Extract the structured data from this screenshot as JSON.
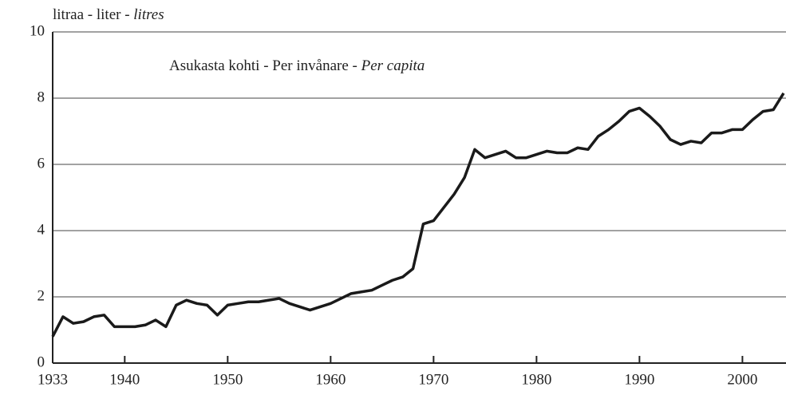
{
  "chart_data": {
    "type": "line",
    "ylabel": [
      "litraa - liter - ",
      "litres"
    ],
    "annotation": [
      "Asukasta kohti - Per invånare - ",
      "Per capita"
    ],
    "x": [
      1933,
      1934,
      1935,
      1936,
      1937,
      1938,
      1939,
      1940,
      1941,
      1942,
      1943,
      1944,
      1945,
      1946,
      1947,
      1948,
      1949,
      1950,
      1951,
      1952,
      1953,
      1954,
      1955,
      1956,
      1957,
      1958,
      1959,
      1960,
      1961,
      1962,
      1963,
      1964,
      1965,
      1966,
      1967,
      1968,
      1969,
      1970,
      1971,
      1972,
      1973,
      1974,
      1975,
      1976,
      1977,
      1978,
      1979,
      1980,
      1981,
      1982,
      1983,
      1984,
      1985,
      1986,
      1987,
      1988,
      1989,
      1990,
      1991,
      1992,
      1993,
      1994,
      1995,
      1996,
      1997,
      1998,
      1999,
      2000,
      2001,
      2002,
      2003,
      2004
    ],
    "series": [
      {
        "color": "#1a1a1a",
        "values": [
          0.8,
          1.4,
          1.2,
          1.25,
          1.4,
          1.45,
          1.1,
          1.1,
          1.1,
          1.15,
          1.3,
          1.1,
          1.75,
          1.9,
          1.8,
          1.75,
          1.45,
          1.75,
          1.8,
          1.85,
          1.85,
          1.9,
          1.95,
          1.8,
          1.7,
          1.6,
          1.7,
          1.8,
          1.95,
          2.1,
          2.15,
          2.2,
          2.35,
          2.5,
          2.6,
          2.85,
          4.2,
          4.3,
          4.7,
          5.1,
          5.6,
          6.45,
          6.2,
          6.3,
          6.4,
          6.2,
          6.2,
          6.3,
          6.4,
          6.35,
          6.35,
          6.5,
          6.45,
          6.85,
          7.05,
          7.3,
          7.6,
          7.7,
          7.45,
          7.15,
          6.75,
          6.6,
          6.7,
          6.65,
          6.95,
          6.95,
          7.05,
          7.05,
          7.35,
          7.6,
          7.65,
          8.15
        ]
      }
    ],
    "xlim": [
      1933,
      2004
    ],
    "xticks": [
      1933,
      1940,
      1950,
      1960,
      1970,
      1980,
      1990,
      2000
    ],
    "ylim": [
      0,
      10
    ],
    "yticks": [
      0,
      2,
      4,
      6,
      8,
      10
    ],
    "grid": true
  }
}
